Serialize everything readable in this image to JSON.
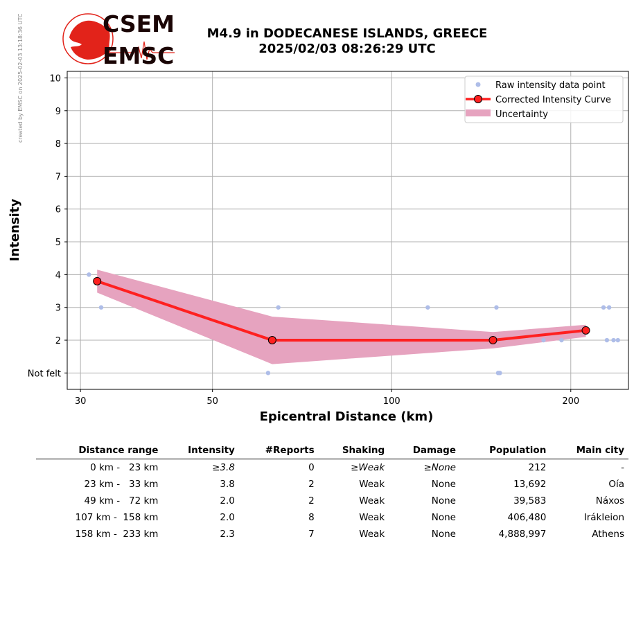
{
  "watermark": "created by EMSC on 2025-02-03 13:18:36 UTC",
  "logo": {
    "line1": "CSEM",
    "line2": "EMSC"
  },
  "title": {
    "line1": "M4.9 in DODECANESE ISLANDS, GREECE",
    "line2": "2025/02/03 08:26:29 UTC"
  },
  "colors": {
    "curve": "#ff2020",
    "band": "#e6a3bf",
    "raw": "#aebde8",
    "grid": "#b0b0b0"
  },
  "chart_data": {
    "type": "line",
    "xlabel": "Epicentral Distance (km)",
    "ylabel": "Intensity",
    "xscale": "log",
    "xlim": [
      28.5,
      250
    ],
    "ylim": [
      0.5,
      10.2
    ],
    "xticks": [
      30,
      50,
      100,
      200
    ],
    "yticks": [
      1,
      2,
      3,
      4,
      5,
      6,
      7,
      8,
      9,
      10
    ],
    "yticklabels": [
      "Not felt",
      "2",
      "3",
      "4",
      "5",
      "6",
      "7",
      "8",
      "9",
      "10"
    ],
    "grid": true,
    "legend_position": "top-right",
    "series": [
      {
        "name": "Raw intensity data point",
        "kind": "scatter",
        "x": [
          31,
          32.5,
          62,
          64.5,
          115,
          150,
          151,
          152,
          180,
          193,
          227,
          230,
          232,
          236,
          240
        ],
        "y": [
          4,
          3,
          1,
          3,
          3,
          3,
          1,
          1,
          2,
          2,
          3,
          2,
          3,
          2,
          2
        ]
      },
      {
        "name": "Corrected Intensity Curve",
        "kind": "line",
        "x": [
          32,
          63,
          148,
          212
        ],
        "y": [
          3.8,
          2.0,
          2.0,
          2.3
        ]
      },
      {
        "name": "Uncertainty",
        "kind": "band",
        "x": [
          32,
          63,
          148,
          212
        ],
        "upper": [
          4.15,
          2.72,
          2.25,
          2.47
        ],
        "lower": [
          3.45,
          1.27,
          1.75,
          2.1
        ]
      }
    ]
  },
  "table": {
    "headers": [
      "Distance range",
      "Intensity",
      "#Reports",
      "Shaking",
      "Damage",
      "Population",
      "Main city"
    ],
    "rows": [
      [
        "0 km -   23 km",
        "≥3.8",
        "0",
        "≥Weak",
        "≥None",
        "212",
        "-"
      ],
      [
        "23 km -   33 km",
        "3.8",
        "2",
        "Weak",
        "None",
        "13,692",
        "Oía"
      ],
      [
        "49 km -   72 km",
        "2.0",
        "2",
        "Weak",
        "None",
        "39,583",
        "Náxos"
      ],
      [
        "107 km -  158 km",
        "2.0",
        "8",
        "Weak",
        "None",
        "406,480",
        "Irákleion"
      ],
      [
        "158 km -  233 km",
        "2.3",
        "7",
        "Weak",
        "None",
        "4,888,997",
        "Athens"
      ]
    ],
    "italic_row": 0
  }
}
